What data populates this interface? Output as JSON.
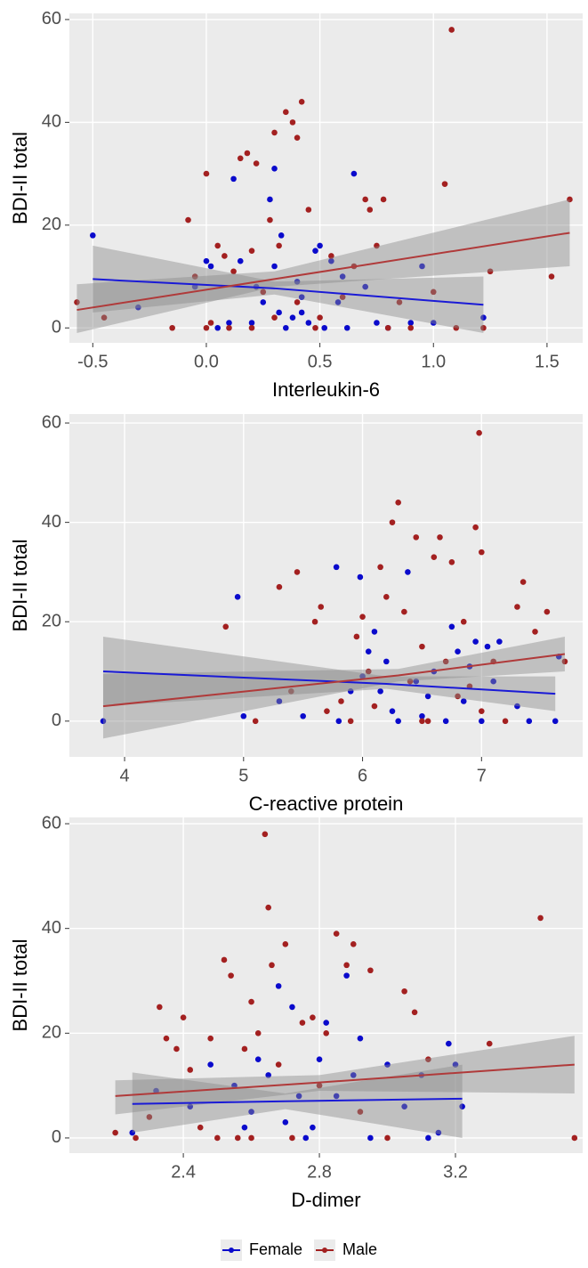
{
  "chart_data": [
    {
      "type": "scatter",
      "x_label": "Interleukin-6",
      "y_label": "BDI-II total",
      "xlim": [
        -0.603,
        1.657
      ],
      "ylim": [
        -2.9,
        61.2
      ],
      "xticks": [
        -0.5,
        {
          "value": 0,
          "label": "0.0"
        },
        0.5,
        {
          "value": 1,
          "label": "1.0"
        },
        1.5
      ],
      "yticks": [
        0,
        20,
        40,
        60
      ],
      "grid": true,
      "series": [
        {
          "color": "#0a0acc",
          "line_color": "#1a1ad6",
          "x": [
            -0.5,
            -0.3,
            -0.05,
            0,
            0.02,
            0.05,
            0.1,
            0.12,
            0.15,
            0.2,
            0.22,
            0.25,
            0.28,
            0.3,
            0.32,
            0.33,
            0.35,
            0.38,
            0.4,
            0.42,
            0.45,
            0.48,
            0.5,
            0.52,
            0.55,
            0.58,
            0.62,
            0.65,
            0.7,
            0.75,
            0.8,
            0.9,
            0.95,
            1.0,
            1.22,
            0.6,
            0.3,
            0.42
          ],
          "values": [
            18,
            4,
            8,
            13,
            12,
            0,
            1,
            29,
            13,
            1,
            8,
            5,
            25,
            31,
            3,
            18,
            0,
            2,
            9,
            6,
            1,
            15,
            16,
            0,
            13,
            5,
            0,
            30,
            8,
            1,
            0,
            1,
            12,
            1,
            2,
            10,
            12,
            3
          ],
          "fit": {
            "x": [
              -0.5,
              0.3,
              1.22
            ],
            "y": [
              9.5,
              7.7,
              4.5
            ],
            "lower": [
              3,
              6.5,
              -1
            ],
            "upper": [
              16,
              9,
              10
            ]
          }
        },
        {
          "color": "#a32020",
          "line_color": "#b03a3a",
          "x": [
            -0.57,
            -0.45,
            -0.08,
            -0.05,
            0,
            0.02,
            0.05,
            0.08,
            0.1,
            0.12,
            0.15,
            0.18,
            0.2,
            0.22,
            0.25,
            0.28,
            0.3,
            0.32,
            0.35,
            0.38,
            0.4,
            0.42,
            0.45,
            0.48,
            0.5,
            0.55,
            0.6,
            0.65,
            0.7,
            0.72,
            0.75,
            0.78,
            0.8,
            0.85,
            0.9,
            1.0,
            1.05,
            1.08,
            1.1,
            1.25,
            1.22,
            1.52,
            1.6,
            0,
            0.2,
            -0.15,
            0.4,
            0.3
          ],
          "values": [
            5,
            2,
            21,
            10,
            30,
            1,
            16,
            14,
            0,
            11,
            33,
            34,
            15,
            32,
            7,
            21,
            38,
            16,
            42,
            40,
            37,
            44,
            23,
            0,
            2,
            14,
            6,
            12,
            25,
            23,
            16,
            25,
            0,
            5,
            0,
            7,
            28,
            58,
            0,
            11,
            0,
            10,
            25,
            0,
            0,
            0,
            5,
            2
          ],
          "fit": {
            "x": [
              -0.57,
              0.3,
              1.6
            ],
            "y": [
              3.5,
              9.5,
              18.5
            ],
            "lower": [
              -1,
              8,
              12
            ],
            "upper": [
              8.5,
              11,
              25
            ]
          }
        }
      ]
    },
    {
      "type": "scatter",
      "x_label": "C-reactive protein",
      "y_label": "BDI-II total",
      "xlim": [
        3.536,
        7.85
      ],
      "ylim": [
        -7.2,
        61.8
      ],
      "xticks": [
        4,
        5,
        6,
        7
      ],
      "yticks": [
        0,
        20,
        40,
        60
      ],
      "grid": true,
      "series": [
        {
          "color": "#0a0acc",
          "line_color": "#1a1ad6",
          "x": [
            3.82,
            4.95,
            5.0,
            5.3,
            5.5,
            5.78,
            5.8,
            5.9,
            5.98,
            6.05,
            6.1,
            6.15,
            6.2,
            6.3,
            6.38,
            6.45,
            6.5,
            6.55,
            6.6,
            6.7,
            6.75,
            6.8,
            6.85,
            6.9,
            6.95,
            7.0,
            7.05,
            7.1,
            7.15,
            7.3,
            7.4,
            7.62,
            7.65,
            6.25,
            6.0
          ],
          "values": [
            0,
            25,
            1,
            4,
            1,
            31,
            0,
            6,
            29,
            14,
            18,
            6,
            12,
            0,
            30,
            8,
            1,
            5,
            10,
            0,
            19,
            14,
            4,
            11,
            16,
            0,
            15,
            8,
            16,
            3,
            0,
            0,
            13,
            2,
            9
          ],
          "fit": {
            "x": [
              3.82,
              6.2,
              7.62
            ],
            "y": [
              10,
              7.5,
              5.5
            ],
            "lower": [
              3,
              6.5,
              2
            ],
            "upper": [
              17,
              9,
              9
            ]
          }
        },
        {
          "color": "#a32020",
          "line_color": "#b03a3a",
          "x": [
            4.85,
            5.3,
            5.45,
            5.6,
            5.65,
            5.7,
            5.82,
            5.9,
            5.95,
            6.0,
            6.05,
            6.1,
            6.15,
            6.2,
            6.25,
            6.3,
            6.35,
            6.4,
            6.45,
            6.5,
            6.55,
            6.6,
            6.65,
            6.7,
            6.75,
            6.8,
            6.85,
            6.9,
            6.95,
            6.98,
            7.0,
            7.1,
            7.2,
            7.3,
            7.35,
            7.45,
            7.55,
            7.7,
            5.1,
            5.4,
            6.5,
            7.0
          ],
          "values": [
            19,
            27,
            30,
            20,
            23,
            2,
            4,
            0,
            17,
            21,
            10,
            3,
            31,
            25,
            40,
            44,
            22,
            8,
            37,
            15,
            0,
            33,
            37,
            12,
            32,
            5,
            20,
            7,
            39,
            58,
            34,
            12,
            0,
            23,
            28,
            18,
            22,
            12,
            0,
            6,
            0,
            2
          ],
          "fit": {
            "x": [
              3.82,
              6.3,
              7.7
            ],
            "y": [
              3,
              9.2,
              13.5
            ],
            "lower": [
              -3.5,
              8,
              10
            ],
            "upper": [
              9.5,
              10.5,
              17
            ]
          }
        }
      ]
    },
    {
      "type": "scatter",
      "x_label": "D-dimer",
      "y_label": "BDI-II total",
      "xlim": [
        2.065,
        3.574
      ],
      "ylim": [
        -2.9,
        61.2
      ],
      "xticks": [
        2.4,
        2.8,
        3.2
      ],
      "yticks": [
        0,
        20,
        40,
        60
      ],
      "grid": true,
      "series": [
        {
          "color": "#0a0acc",
          "line_color": "#1a1ad6",
          "x": [
            2.25,
            2.32,
            2.42,
            2.48,
            2.55,
            2.58,
            2.62,
            2.65,
            2.68,
            2.72,
            2.74,
            2.76,
            2.78,
            2.8,
            2.82,
            2.88,
            2.9,
            2.92,
            2.95,
            3.0,
            3.05,
            3.1,
            3.12,
            3.18,
            3.2,
            3.22,
            2.7,
            2.6,
            2.85,
            3.15
          ],
          "values": [
            1,
            9,
            6,
            14,
            10,
            2,
            15,
            12,
            29,
            25,
            8,
            0,
            2,
            15,
            22,
            31,
            12,
            19,
            0,
            14,
            6,
            12,
            0,
            18,
            14,
            6,
            3,
            5,
            8,
            1
          ],
          "fit": {
            "x": [
              2.25,
              2.7,
              3.22
            ],
            "y": [
              6.5,
              7,
              7.5
            ],
            "lower": [
              1,
              5.5,
              0
            ],
            "upper": [
              12.5,
              8.5,
              14
            ]
          }
        },
        {
          "color": "#a32020",
          "line_color": "#b03a3a",
          "x": [
            2.2,
            2.26,
            2.3,
            2.33,
            2.35,
            2.38,
            2.4,
            2.42,
            2.45,
            2.48,
            2.52,
            2.54,
            2.56,
            2.58,
            2.6,
            2.62,
            2.64,
            2.65,
            2.66,
            2.68,
            2.7,
            2.72,
            2.75,
            2.78,
            2.8,
            2.82,
            2.85,
            2.88,
            2.9,
            2.92,
            2.95,
            3.0,
            3.05,
            3.08,
            3.12,
            3.3,
            3.45,
            3.55,
            2.5,
            2.6
          ],
          "values": [
            1,
            0,
            4,
            25,
            19,
            17,
            23,
            13,
            2,
            19,
            34,
            31,
            0,
            17,
            26,
            20,
            58,
            44,
            33,
            14,
            37,
            0,
            22,
            23,
            10,
            20,
            39,
            33,
            37,
            5,
            32,
            0,
            28,
            24,
            15,
            18,
            42,
            0,
            0,
            0
          ],
          "fit": {
            "x": [
              2.2,
              2.8,
              3.55
            ],
            "y": [
              8,
              10.6,
              14
            ],
            "lower": [
              4.5,
              9,
              8.5
            ],
            "upper": [
              11,
              12,
              19.5
            ]
          }
        }
      ]
    }
  ],
  "legend": [
    {
      "name": "Female",
      "color": "#0a0acc"
    },
    {
      "name": "Male",
      "color": "#a32020"
    }
  ]
}
